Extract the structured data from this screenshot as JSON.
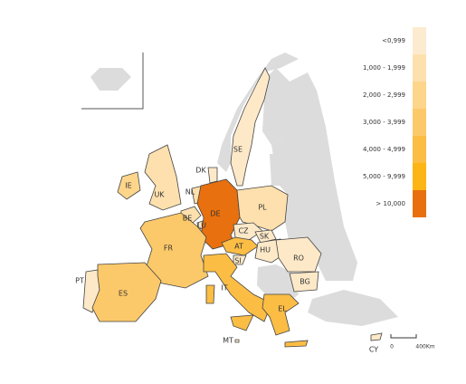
{
  "legend": {
    "items": [
      {
        "label": "<0,999",
        "color": "#fdebd0"
      },
      {
        "label": "1,000 - 1,999",
        "color": "#fde0ad"
      },
      {
        "label": "2,000 - 2,999",
        "color": "#fdd58b"
      },
      {
        "label": "3,000 - 3,999",
        "color": "#fcc96a"
      },
      {
        "label": "4,000 - 4,999",
        "color": "#fbbd44"
      },
      {
        "label": "5,000 - 9,999",
        "color": "#fcb514"
      },
      {
        "label": "> 10,000",
        "color": "#e8700e"
      }
    ]
  },
  "countries": [
    {
      "label": "SE",
      "color": "#fde9c8"
    },
    {
      "label": "DK",
      "color": "#fde9c8"
    },
    {
      "label": "IE",
      "color": "#fdd58b"
    },
    {
      "label": "UK",
      "color": "#fde0ad"
    },
    {
      "label": "NL",
      "color": "#fde0ad"
    },
    {
      "label": "BE",
      "color": "#fde0ad"
    },
    {
      "label": "LU",
      "color": "#fde9c8"
    },
    {
      "label": "DE",
      "color": "#e8700e"
    },
    {
      "label": "PL",
      "color": "#fde0ad"
    },
    {
      "label": "CZ",
      "color": "#fde9c8"
    },
    {
      "label": "SK",
      "color": "#fde9c8"
    },
    {
      "label": "AT",
      "color": "#fbbd44"
    },
    {
      "label": "HU",
      "color": "#fde9c8"
    },
    {
      "label": "SI",
      "color": "#fde9c8"
    },
    {
      "label": "FR",
      "color": "#fcc96a"
    },
    {
      "label": "RO",
      "color": "#fde9c8"
    },
    {
      "label": "BG",
      "color": "#fde9c8"
    },
    {
      "label": "PT",
      "color": "#fde9c8"
    },
    {
      "label": "ES",
      "color": "#fcc96a"
    },
    {
      "label": "IT",
      "color": "#fbbd44"
    },
    {
      "label": "EL",
      "color": "#fbbd44"
    },
    {
      "label": "MT",
      "color": "#fde9c8"
    },
    {
      "label": "CY",
      "color": "#fde9c8"
    }
  ],
  "scale_bar": {
    "start": "0",
    "end": "400Km"
  }
}
